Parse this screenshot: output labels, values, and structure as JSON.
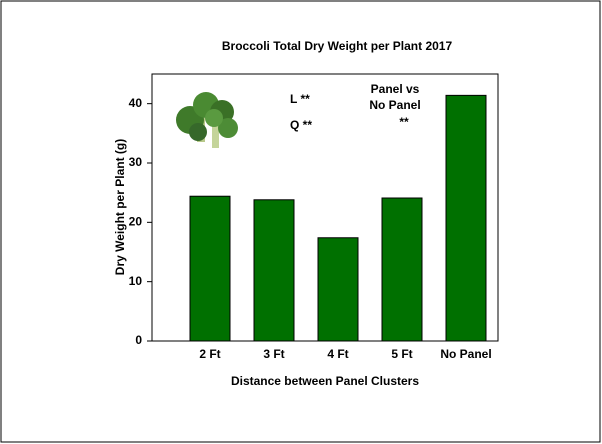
{
  "chart_data": {
    "type": "bar",
    "title": "Broccoli Total Dry Weight per Plant 2017",
    "x_label": "Distance between Panel Clusters",
    "y_label": "Dry Weight per Plant (g)",
    "categories": [
      "2 Ft",
      "3 Ft",
      "4 Ft",
      "5 Ft",
      "No Panel"
    ],
    "values": [
      24.4,
      23.8,
      17.4,
      24.1,
      41.4
    ],
    "color": "#007000",
    "ylim": [
      0,
      45
    ],
    "yticks": [
      0,
      10,
      20,
      30,
      40
    ],
    "grid": false,
    "annotations": [
      "L **",
      "Q **",
      "Panel vs",
      "No Panel",
      "**"
    ]
  }
}
